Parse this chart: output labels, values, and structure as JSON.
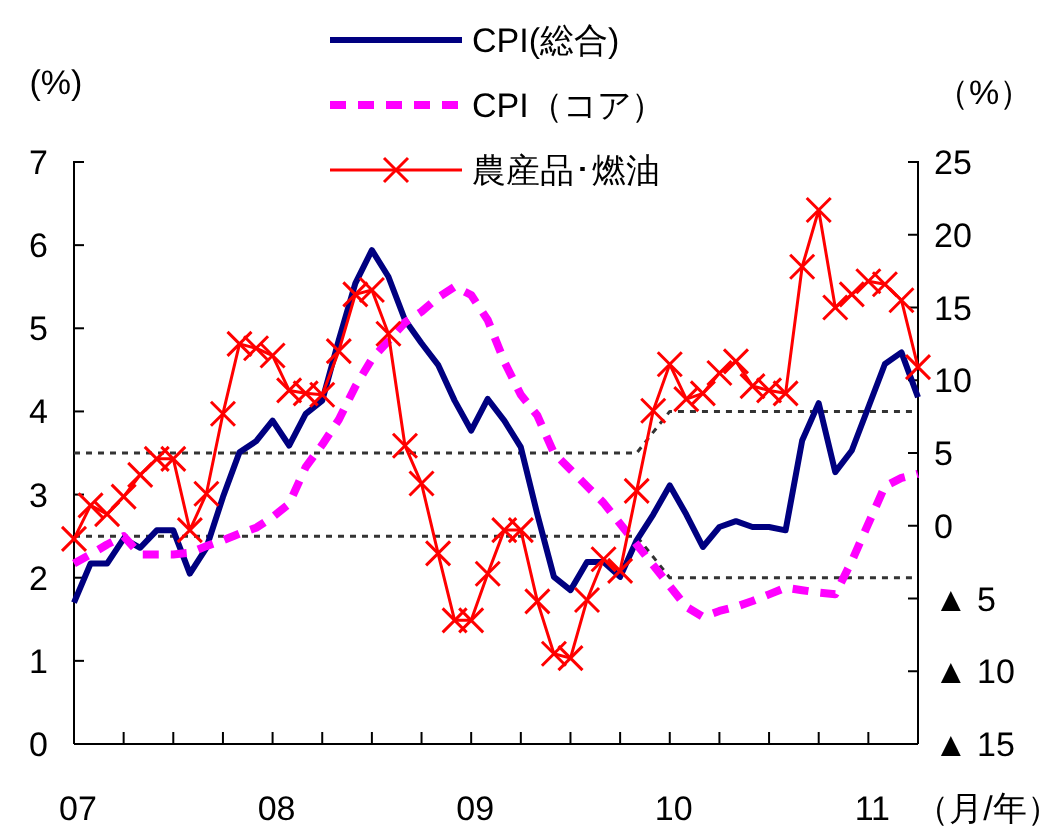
{
  "chart_data": {
    "type": "line",
    "x": [
      "2007-01",
      "2007-02",
      "2007-03",
      "2007-04",
      "2007-05",
      "2007-06",
      "2007-07",
      "2007-08",
      "2007-09",
      "2007-10",
      "2007-11",
      "2007-12",
      "2008-01",
      "2008-02",
      "2008-03",
      "2008-04",
      "2008-05",
      "2008-06",
      "2008-07",
      "2008-08",
      "2008-09",
      "2008-10",
      "2008-11",
      "2008-12",
      "2009-01",
      "2009-02",
      "2009-03",
      "2009-04",
      "2009-05",
      "2009-06",
      "2009-07",
      "2009-08",
      "2009-09",
      "2009-10",
      "2009-11",
      "2009-12",
      "2010-01",
      "2010-02",
      "2010-03",
      "2010-04",
      "2010-05",
      "2010-06",
      "2010-07",
      "2010-08",
      "2010-09",
      "2010-10",
      "2010-11",
      "2010-12",
      "2011-01",
      "2011-02",
      "2011-03",
      "2011-04"
    ],
    "series": [
      {
        "color": "#333333",
        "line_style": "dotted",
        "marker": "none",
        "x": [
          "2007-01",
          "2009-11",
          "2010-01",
          "2011-04"
        ],
        "values": [
          3.5,
          3.5,
          4,
          4
        ]
      },
      {
        "color": "#333333",
        "line_style": "dotted",
        "marker": "none",
        "x": [
          "2007-01",
          "2009-11",
          "2010-01",
          "2011-04"
        ],
        "values": [
          2.5,
          2.5,
          2,
          2
        ]
      },
      {
        "name": "CPI(総合)",
        "color": "#000080",
        "line_style": "solid",
        "marker": "none",
        "values": [
          1.7,
          2.17,
          2.17,
          2.47,
          2.36,
          2.57,
          2.57,
          2.05,
          2.36,
          2.97,
          3.51,
          3.64,
          3.89,
          3.59,
          3.97,
          4.13,
          4.86,
          5.54,
          5.94,
          5.62,
          5.1,
          4.82,
          4.56,
          4.13,
          3.77,
          4.15,
          3.89,
          3.57,
          2.76,
          2.01,
          1.85,
          2.19,
          2.19,
          2.01,
          2.45,
          2.76,
          3.11,
          2.76,
          2.37,
          2.61,
          2.68,
          2.61,
          2.61,
          2.57,
          3.65,
          4.1,
          3.27,
          3.53,
          4.05,
          4.57,
          4.71,
          4.17
        ]
      },
      {
        "name": "CPI（コア）",
        "color": "#ff00ff",
        "line_style": "dashed",
        "marker": "none",
        "values": [
          2.17,
          2.28,
          2.4,
          2.5,
          2.28,
          2.28,
          2.28,
          2.3,
          2.38,
          2.45,
          2.53,
          2.6,
          2.73,
          2.89,
          3.33,
          3.6,
          3.9,
          4.3,
          4.63,
          4.85,
          5.07,
          5.2,
          5.37,
          5.5,
          5.4,
          5.1,
          4.6,
          4.2,
          3.95,
          3.5,
          3.3,
          3.1,
          2.9,
          2.65,
          2.4,
          2.15,
          1.9,
          1.65,
          1.53,
          1.6,
          1.65,
          1.72,
          1.8,
          1.88,
          1.85,
          1.82,
          1.8,
          2.2,
          2.65,
          3.1,
          3.2,
          3.25
        ]
      },
      {
        "name": "農産品･燃油",
        "axis": "y2",
        "color": "#ff0000",
        "line_style": "solid",
        "marker": "cross",
        "values": [
          -0.9,
          1.4,
          0.8,
          2.0,
          3.5,
          4.6,
          4.6,
          -0.3,
          2.2,
          7.7,
          12.5,
          12.2,
          11.7,
          9.3,
          9.1,
          9.0,
          12.0,
          15.9,
          16.2,
          13.2,
          5.5,
          2.9,
          -1.9,
          -6.5,
          -6.5,
          -3.3,
          -0.3,
          -0.3,
          -5.2,
          -8.8,
          -9.1,
          -5.1,
          -2.3,
          -3.1,
          2.4,
          7.9,
          11.1,
          8.7,
          9.1,
          10.5,
          11.3,
          9.6,
          9.3,
          9.1,
          17.8,
          21.7,
          15.0,
          15.9,
          16.8,
          16.6,
          15.5,
          10.9
        ]
      }
    ],
    "xlim": [
      "2007-01",
      "2011-04"
    ],
    "xticks": [
      {
        "value": "2007-01",
        "label": "07"
      },
      {
        "value": "2007-04",
        "label": null
      },
      {
        "value": "2007-07",
        "label": null
      },
      {
        "value": "2007-10",
        "label": null
      },
      {
        "value": "2008-01",
        "label": "08"
      },
      {
        "value": "2008-04",
        "label": null
      },
      {
        "value": "2008-07",
        "label": null
      },
      {
        "value": "2008-10",
        "label": null
      },
      {
        "value": "2009-01",
        "label": "09"
      },
      {
        "value": "2009-04",
        "label": null
      },
      {
        "value": "2009-07",
        "label": null
      },
      {
        "value": "2009-10",
        "label": null
      },
      {
        "value": "2010-01",
        "label": "10"
      },
      {
        "value": "2010-04",
        "label": null
      },
      {
        "value": "2010-07",
        "label": null
      },
      {
        "value": "2010-10",
        "label": null
      },
      {
        "value": "2011-01",
        "label": "11"
      },
      {
        "value": "2011-04",
        "label": null
      }
    ],
    "xlabel": "（月/年）",
    "ylabel": "(%)",
    "y2label": "（%）",
    "ylim": [
      0,
      7
    ],
    "yticks": [
      0,
      1,
      2,
      3,
      4,
      5,
      6,
      7
    ],
    "y2lim": [
      -15,
      25
    ],
    "y2ticks": [
      {
        "value": -15,
        "label": "▲ 15"
      },
      {
        "value": -10,
        "label": "▲ 10"
      },
      {
        "value": -5,
        "label": "▲ 5"
      },
      0,
      5,
      10,
      15,
      20,
      25
    ],
    "grid": false,
    "legend": "top"
  }
}
